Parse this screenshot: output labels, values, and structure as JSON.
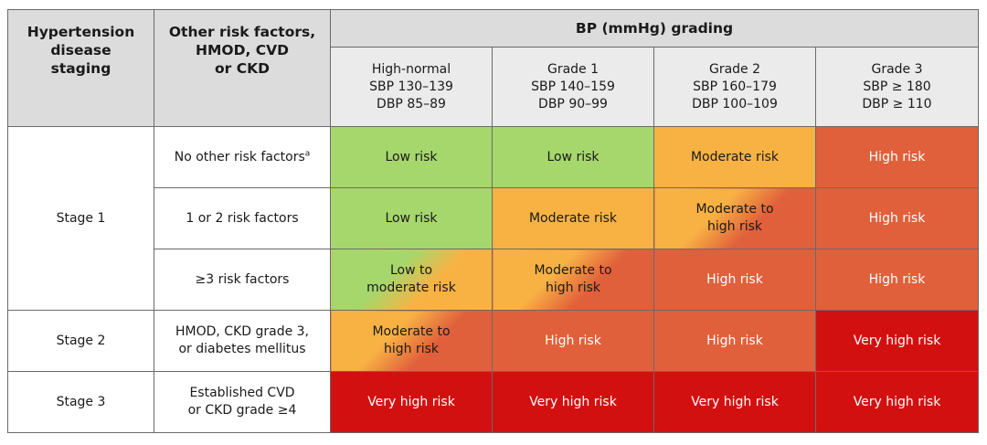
{
  "header": {
    "col1": [
      "Hypertension",
      "disease",
      "staging"
    ],
    "col2": [
      "Other risk factors,",
      "HMOD, CVD",
      "or CKD"
    ],
    "group": "BP (mmHg) grading",
    "grades": [
      [
        "High-normal",
        "SBP 130–139",
        "DBP 85–89"
      ],
      [
        "Grade 1",
        "SBP 140–159",
        "DBP 90–99"
      ],
      [
        "Grade 2",
        "SBP 160–179",
        "DBP 100–109"
      ],
      [
        "Grade 3",
        "SBP ≥ 180",
        "DBP ≥ 110"
      ]
    ]
  },
  "stages": [
    "Stage 1",
    "Stage 2",
    "Stage 3"
  ],
  "risk_factors": {
    "r1": "No other risk factors",
    "r1_sup": "a",
    "r2": "1 or 2 risk factors",
    "r3": "≥3 risk factors",
    "r4": [
      "HMOD, CKD grade 3,",
      "or diabetes mellitus"
    ],
    "r5": [
      "Established CVD",
      "or CKD grade ≥4"
    ]
  },
  "risk_labels": {
    "low": "Low risk",
    "moderate": "Moderate risk",
    "high": "High risk",
    "very_high": "Very high risk",
    "low_to_moderate": [
      "Low to",
      "moderate risk"
    ],
    "moderate_to_high": [
      "Moderate to",
      "high risk"
    ]
  },
  "colors": {
    "low": "#a6d76d",
    "moderate": "#f8b244",
    "high": "#e0603b",
    "very_high": "#d31010",
    "header_bg": "#dcdcdc"
  }
}
